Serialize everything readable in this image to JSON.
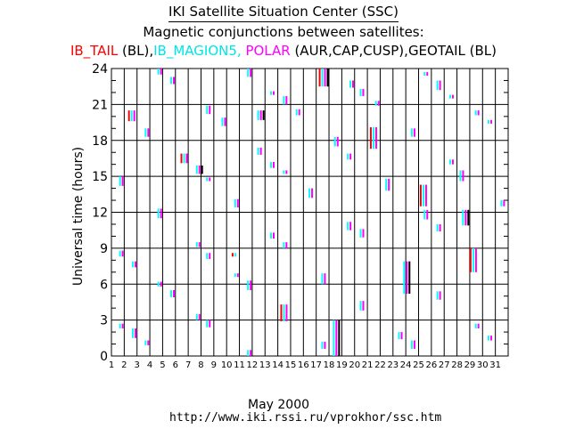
{
  "header": {
    "title": "IKI Satellite Situation Center (SSC)",
    "subtitle": "Magnetic conjunctions between satellites:"
  },
  "legend": [
    {
      "text": "IB_TAIL",
      "color": "#ff0000"
    },
    {
      "text": " (BL),",
      "color": "#000000"
    },
    {
      "text": "IB_MAGION5,",
      "color": "#00e5e5"
    },
    {
      "text": " POLAR",
      "color": "#ff00ff"
    },
    {
      "text": " (AUR,CAP,CUSP),",
      "color": "#000000"
    },
    {
      "text": "GEOTAIL",
      "color": "#000000"
    },
    {
      "text": " (BL)",
      "color": "#000000"
    }
  ],
  "footer": {
    "month": "May    2000",
    "url": "http://www.iki.rssi.ru/vprokhor/ssc.htm"
  },
  "colors": {
    "IB_TAIL": "#ff0000",
    "IB_MAGION5": "#00ffff",
    "POLAR": "#ff00ff",
    "GEOTAIL": "#000000"
  },
  "chart_data": {
    "type": "scatter",
    "ylabel": "Universal time (hours)",
    "xlim": [
      1,
      32
    ],
    "ylim": [
      0,
      24
    ],
    "yticks": [
      0,
      3,
      6,
      9,
      12,
      15,
      18,
      21,
      24
    ],
    "xticks": [
      "1",
      "2",
      "3",
      "4",
      "5",
      "6",
      "7",
      "8",
      "9",
      "10",
      "11",
      "12",
      "13",
      "14",
      "15",
      "16",
      "17",
      "18",
      "19",
      "20",
      "21",
      "22",
      "23",
      "24",
      "25",
      "26",
      "27",
      "28",
      "29",
      "30",
      "31"
    ],
    "events": [
      {
        "day": 1.6,
        "start": 14.2,
        "end": 15.0,
        "sats": [
          "IB_MAGION5",
          "POLAR"
        ]
      },
      {
        "day": 1.6,
        "start": 8.3,
        "end": 8.8,
        "sats": [
          "IB_MAGION5",
          "POLAR"
        ]
      },
      {
        "day": 1.6,
        "start": 2.3,
        "end": 2.7,
        "sats": [
          "IB_MAGION5",
          "POLAR"
        ]
      },
      {
        "day": 2.3,
        "start": 19.6,
        "end": 20.5,
        "sats": [
          "IB_TAIL",
          "IB_MAGION5",
          "POLAR"
        ]
      },
      {
        "day": 2.6,
        "start": 7.4,
        "end": 7.9,
        "sats": [
          "IB_MAGION5",
          "POLAR"
        ]
      },
      {
        "day": 2.6,
        "start": 1.5,
        "end": 2.3,
        "sats": [
          "IB_MAGION5",
          "POLAR"
        ]
      },
      {
        "day": 3.6,
        "start": 18.3,
        "end": 19.0,
        "sats": [
          "IB_MAGION5",
          "POLAR"
        ]
      },
      {
        "day": 3.6,
        "start": 0.9,
        "end": 1.3,
        "sats": [
          "IB_MAGION5",
          "POLAR"
        ]
      },
      {
        "day": 4.6,
        "start": 23.5,
        "end": 24.0,
        "sats": [
          "IB_MAGION5",
          "POLAR"
        ]
      },
      {
        "day": 4.6,
        "start": 11.5,
        "end": 12.3,
        "sats": [
          "IB_MAGION5",
          "POLAR"
        ]
      },
      {
        "day": 4.6,
        "start": 5.8,
        "end": 6.2,
        "sats": [
          "IB_MAGION5",
          "POLAR"
        ]
      },
      {
        "day": 5.6,
        "start": 22.7,
        "end": 23.3,
        "sats": [
          "IB_MAGION5",
          "POLAR"
        ]
      },
      {
        "day": 5.6,
        "start": 4.9,
        "end": 5.5,
        "sats": [
          "IB_MAGION5",
          "POLAR"
        ]
      },
      {
        "day": 6.4,
        "start": 16.1,
        "end": 16.9,
        "sats": [
          "IB_TAIL",
          "IB_MAGION5",
          "POLAR"
        ]
      },
      {
        "day": 7.6,
        "start": 15.2,
        "end": 15.9,
        "sats": [
          "IB_MAGION5",
          "POLAR",
          "GEOTAIL"
        ]
      },
      {
        "day": 7.6,
        "start": 9.1,
        "end": 9.5,
        "sats": [
          "IB_MAGION5",
          "POLAR"
        ]
      },
      {
        "day": 7.6,
        "start": 3.0,
        "end": 3.5,
        "sats": [
          "IB_MAGION5",
          "POLAR"
        ]
      },
      {
        "day": 8.4,
        "start": 20.2,
        "end": 20.9,
        "sats": [
          "IB_MAGION5",
          "POLAR"
        ]
      },
      {
        "day": 8.4,
        "start": 14.6,
        "end": 14.9,
        "sats": [
          "IB_MAGION5",
          "POLAR"
        ]
      },
      {
        "day": 8.4,
        "start": 8.1,
        "end": 8.6,
        "sats": [
          "IB_MAGION5",
          "POLAR"
        ]
      },
      {
        "day": 8.4,
        "start": 2.4,
        "end": 3.0,
        "sats": [
          "IB_MAGION5",
          "POLAR"
        ]
      },
      {
        "day": 9.6,
        "start": 19.2,
        "end": 19.9,
        "sats": [
          "IB_MAGION5",
          "POLAR"
        ]
      },
      {
        "day": 10.4,
        "start": 8.3,
        "end": 8.6,
        "sats": [
          "IB_TAIL",
          "IB_MAGION5"
        ]
      },
      {
        "day": 10.6,
        "start": 12.4,
        "end": 13.1,
        "sats": [
          "IB_MAGION5",
          "POLAR"
        ]
      },
      {
        "day": 10.6,
        "start": 6.6,
        "end": 6.9,
        "sats": [
          "IB_MAGION5",
          "POLAR"
        ]
      },
      {
        "day": 11.6,
        "start": 23.3,
        "end": 24.0,
        "sats": [
          "IB_MAGION5",
          "POLAR"
        ]
      },
      {
        "day": 11.6,
        "start": 5.5,
        "end": 6.3,
        "sats": [
          "IB_MAGION5",
          "POLAR"
        ]
      },
      {
        "day": 11.6,
        "start": 0.0,
        "end": 0.5,
        "sats": [
          "IB_MAGION5",
          "POLAR"
        ]
      },
      {
        "day": 12.4,
        "start": 19.7,
        "end": 20.5,
        "sats": [
          "IB_MAGION5",
          "POLAR",
          "GEOTAIL"
        ]
      },
      {
        "day": 12.4,
        "start": 16.8,
        "end": 17.4,
        "sats": [
          "IB_MAGION5",
          "POLAR"
        ]
      },
      {
        "day": 13.4,
        "start": 21.8,
        "end": 22.1,
        "sats": [
          "IB_MAGION5",
          "POLAR"
        ]
      },
      {
        "day": 13.4,
        "start": 15.7,
        "end": 16.2,
        "sats": [
          "IB_MAGION5",
          "POLAR"
        ]
      },
      {
        "day": 13.4,
        "start": 9.8,
        "end": 10.3,
        "sats": [
          "IB_MAGION5",
          "POLAR"
        ]
      },
      {
        "day": 14.2,
        "start": 2.9,
        "end": 4.3,
        "sats": [
          "IB_TAIL",
          "IB_MAGION5",
          "POLAR"
        ]
      },
      {
        "day": 14.4,
        "start": 21.0,
        "end": 21.7,
        "sats": [
          "IB_MAGION5",
          "POLAR"
        ]
      },
      {
        "day": 14.4,
        "start": 15.2,
        "end": 15.5,
        "sats": [
          "IB_MAGION5",
          "POLAR"
        ]
      },
      {
        "day": 14.4,
        "start": 9.0,
        "end": 9.5,
        "sats": [
          "IB_MAGION5",
          "POLAR"
        ]
      },
      {
        "day": 15.4,
        "start": 20.1,
        "end": 20.6,
        "sats": [
          "IB_MAGION5",
          "POLAR"
        ]
      },
      {
        "day": 16.4,
        "start": 13.2,
        "end": 14.0,
        "sats": [
          "IB_MAGION5",
          "POLAR"
        ]
      },
      {
        "day": 17.2,
        "start": 22.5,
        "end": 24.0,
        "sats": [
          "IB_TAIL",
          "IB_MAGION5",
          "POLAR",
          "GEOTAIL"
        ]
      },
      {
        "day": 17.4,
        "start": 6.0,
        "end": 6.9,
        "sats": [
          "IB_MAGION5",
          "POLAR"
        ]
      },
      {
        "day": 17.4,
        "start": 0.6,
        "end": 1.2,
        "sats": [
          "IB_MAGION5",
          "POLAR"
        ]
      },
      {
        "day": 18.3,
        "start": 0.0,
        "end": 3.0,
        "sats": [
          "IB_MAGION5",
          "POLAR",
          "GEOTAIL"
        ]
      },
      {
        "day": 18.4,
        "start": 17.5,
        "end": 18.3,
        "sats": [
          "IB_MAGION5",
          "POLAR"
        ]
      },
      {
        "day": 19.4,
        "start": 10.5,
        "end": 11.2,
        "sats": [
          "IB_MAGION5",
          "POLAR"
        ]
      },
      {
        "day": 19.4,
        "start": 16.4,
        "end": 16.9,
        "sats": [
          "IB_MAGION5",
          "POLAR"
        ]
      },
      {
        "day": 19.6,
        "start": 22.4,
        "end": 23.0,
        "sats": [
          "IB_MAGION5",
          "POLAR"
        ]
      },
      {
        "day": 20.4,
        "start": 21.7,
        "end": 22.3,
        "sats": [
          "IB_MAGION5",
          "POLAR"
        ]
      },
      {
        "day": 20.4,
        "start": 9.9,
        "end": 10.6,
        "sats": [
          "IB_MAGION5",
          "POLAR"
        ]
      },
      {
        "day": 20.4,
        "start": 3.8,
        "end": 4.6,
        "sats": [
          "IB_MAGION5",
          "POLAR"
        ]
      },
      {
        "day": 21.2,
        "start": 17.3,
        "end": 19.1,
        "sats": [
          "IB_TAIL",
          "IB_MAGION5",
          "POLAR"
        ]
      },
      {
        "day": 21.6,
        "start": 20.9,
        "end": 21.3,
        "sats": [
          "IB_MAGION5",
          "POLAR"
        ]
      },
      {
        "day": 22.4,
        "start": 13.8,
        "end": 14.8,
        "sats": [
          "IB_MAGION5",
          "POLAR"
        ]
      },
      {
        "day": 23.4,
        "start": 1.4,
        "end": 2.0,
        "sats": [
          "IB_MAGION5",
          "POLAR"
        ]
      },
      {
        "day": 23.8,
        "start": 5.2,
        "end": 7.9,
        "sats": [
          "IB_MAGION5",
          "POLAR",
          "GEOTAIL"
        ]
      },
      {
        "day": 24.4,
        "start": 18.3,
        "end": 19.0,
        "sats": [
          "IB_MAGION5",
          "POLAR"
        ]
      },
      {
        "day": 24.4,
        "start": 0.6,
        "end": 1.3,
        "sats": [
          "IB_MAGION5",
          "POLAR"
        ]
      },
      {
        "day": 25.1,
        "start": 12.5,
        "end": 14.3,
        "sats": [
          "IB_TAIL",
          "IB_MAGION5",
          "POLAR"
        ]
      },
      {
        "day": 25.4,
        "start": 23.4,
        "end": 23.7,
        "sats": [
          "IB_MAGION5",
          "POLAR"
        ]
      },
      {
        "day": 25.4,
        "start": 11.4,
        "end": 12.2,
        "sats": [
          "IB_MAGION5",
          "POLAR"
        ]
      },
      {
        "day": 26.4,
        "start": 22.2,
        "end": 23.0,
        "sats": [
          "IB_MAGION5",
          "POLAR"
        ]
      },
      {
        "day": 26.4,
        "start": 10.4,
        "end": 11.0,
        "sats": [
          "IB_MAGION5",
          "POLAR"
        ]
      },
      {
        "day": 26.4,
        "start": 4.7,
        "end": 5.4,
        "sats": [
          "IB_MAGION5",
          "POLAR"
        ]
      },
      {
        "day": 27.4,
        "start": 21.5,
        "end": 21.8,
        "sats": [
          "IB_MAGION5",
          "POLAR"
        ]
      },
      {
        "day": 27.4,
        "start": 16.0,
        "end": 16.4,
        "sats": [
          "IB_MAGION5",
          "POLAR"
        ]
      },
      {
        "day": 28.2,
        "start": 14.6,
        "end": 15.5,
        "sats": [
          "IB_MAGION5",
          "POLAR"
        ]
      },
      {
        "day": 28.4,
        "start": 10.9,
        "end": 12.2,
        "sats": [
          "IB_MAGION5",
          "POLAR",
          "GEOTAIL"
        ]
      },
      {
        "day": 29.0,
        "start": 7.0,
        "end": 9.0,
        "sats": [
          "IB_TAIL",
          "IB_MAGION5",
          "POLAR"
        ]
      },
      {
        "day": 29.4,
        "start": 20.1,
        "end": 20.5,
        "sats": [
          "IB_MAGION5",
          "POLAR"
        ]
      },
      {
        "day": 29.4,
        "start": 2.3,
        "end": 2.7,
        "sats": [
          "IB_MAGION5",
          "POLAR"
        ]
      },
      {
        "day": 30.4,
        "start": 19.4,
        "end": 19.7,
        "sats": [
          "IB_MAGION5",
          "POLAR"
        ]
      },
      {
        "day": 30.4,
        "start": 1.3,
        "end": 1.7,
        "sats": [
          "IB_MAGION5",
          "POLAR"
        ]
      },
      {
        "day": 31.4,
        "start": 12.5,
        "end": 13.0,
        "sats": [
          "IB_MAGION5",
          "POLAR"
        ]
      }
    ]
  }
}
